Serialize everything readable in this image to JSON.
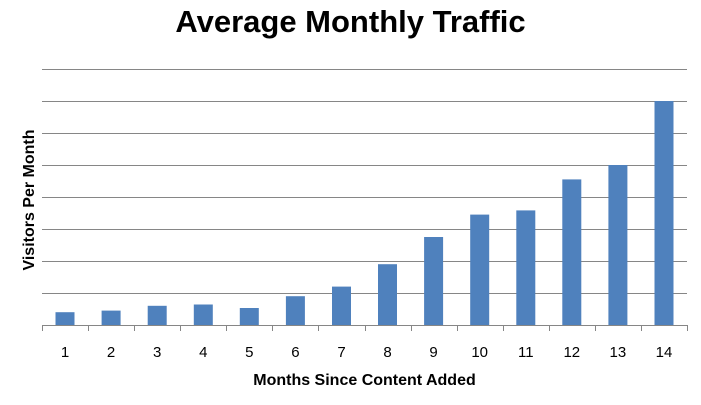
{
  "chart_data": {
    "type": "bar",
    "title": "Average Monthly Traffic",
    "xlabel": "Months Since Content Added",
    "ylabel": "Visitors Per Month",
    "categories": [
      "1",
      "2",
      "3",
      "4",
      "5",
      "6",
      "7",
      "8",
      "9",
      "10",
      "11",
      "12",
      "13",
      "14"
    ],
    "values": [
      0.4,
      0.45,
      0.6,
      0.64,
      0.53,
      0.9,
      1.2,
      1.9,
      2.75,
      3.45,
      3.58,
      4.55,
      5.0,
      7.0
    ],
    "ylim": [
      0,
      8
    ],
    "y_tick_labels_shown": false,
    "grid": true,
    "legend": "none",
    "bar_color": "#4f81bd",
    "grid_color": "#868686"
  }
}
